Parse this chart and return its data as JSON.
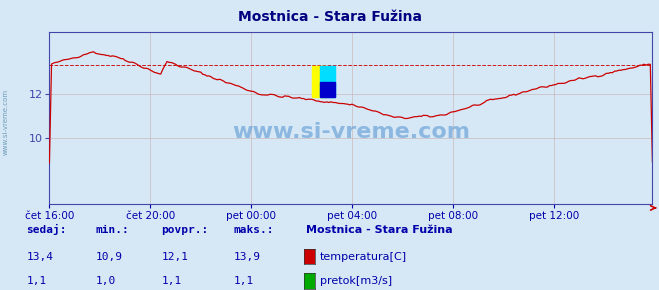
{
  "title": "Mostnica - Stara Fužina",
  "title_color": "#000080",
  "bg_color": "#d6e8f5",
  "plot_bg_color": "#d6e8f5",
  "grid_color": "#c8b0b0",
  "temp_color": "#cc0000",
  "flow_color": "#00aa00",
  "axis_color": "#4444aa",
  "text_color": "#0000aa",
  "watermark": "www.si-vreme.com",
  "watermark_color": "#4488cc",
  "x_labels": [
    "čet 16:00",
    "čet 20:00",
    "pet 00:00",
    "pet 04:00",
    "pet 08:00",
    "pet 12:00"
  ],
  "x_ticks_pos": [
    0,
    48,
    96,
    144,
    192,
    240
  ],
  "total_points": 288,
  "ylim": [
    7.0,
    14.8
  ],
  "yticks": [
    10,
    12
  ],
  "max_temp_line": 13.3,
  "sedaj": [
    "13,4",
    "1,1"
  ],
  "min_": [
    "10,9",
    "1,0"
  ],
  "povpr": [
    "12,1",
    "1,1"
  ],
  "maks": [
    "13,9",
    "1,1"
  ],
  "legend_title": "Mostnica - Stara Fužina",
  "legend_items": [
    "temperatura[C]",
    "pretok[m3/s]"
  ],
  "legend_colors": [
    "#cc0000",
    "#00aa00"
  ]
}
